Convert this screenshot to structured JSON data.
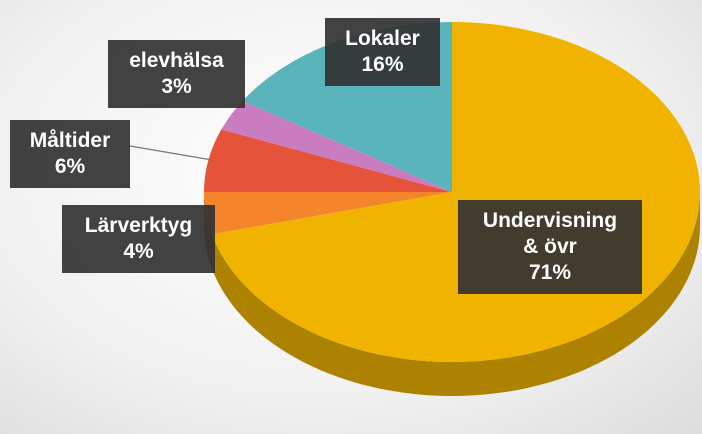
{
  "chart_data": {
    "type": "pie",
    "categories": [
      "Undervisning & övr",
      "Lärverktyg",
      "Måltider",
      "elevhälsa",
      "Lokaler"
    ],
    "values": [
      71,
      4,
      6,
      3,
      16
    ],
    "value_labels": [
      "71%",
      "4%",
      "6%",
      "3%",
      "16%"
    ],
    "colors": [
      "#f0b400",
      "#f5852b",
      "#e5533b",
      "#c97dc0",
      "#5ab4bb"
    ]
  }
}
